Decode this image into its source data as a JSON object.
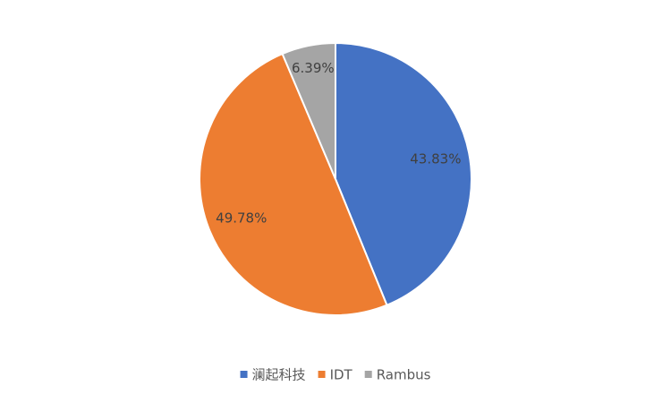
{
  "chart_data": {
    "type": "pie",
    "categories": [
      "澜起科技",
      "IDT",
      "Rambus"
    ],
    "values": [
      43.83,
      49.78,
      6.39
    ],
    "value_labels": [
      "43.83%",
      "49.78%",
      "6.39%"
    ],
    "colors": [
      "#4472c4",
      "#ed7d31",
      "#a5a5a5"
    ],
    "legend": "bottom"
  }
}
